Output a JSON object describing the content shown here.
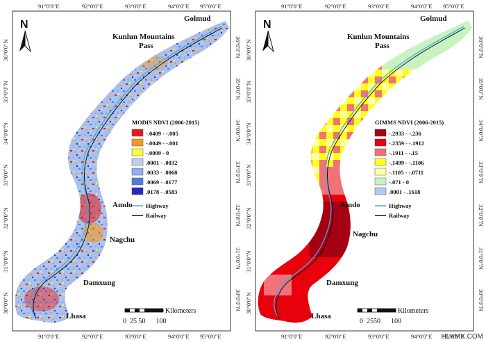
{
  "lon_labels": [
    "91°0'0\"E",
    "92°0'0\"E",
    "93°0'0\"E",
    "94°0'0\"E",
    "95°0'0\"E"
  ],
  "lat_labels": [
    "36°0'0\"N",
    "35°0'0\"N",
    "34°0'0\"N",
    "33°0'0\"N",
    "32°0'0\"N",
    "31°0'0\"N",
    "30°0'0\"N"
  ],
  "north_label": "N",
  "cities": [
    "Golmud",
    "Kunlun Mountains",
    "Pass",
    "Amdo",
    "Nagchu",
    "Damxung",
    "Lhasa"
  ],
  "scale": {
    "unit": "Kilometers",
    "left_ticks": "0  25 50      100",
    "right_ticks": "0  2550      100"
  },
  "maps": [
    {
      "legend_title": "MODIS NDVI (2006-2015)",
      "classes": [
        {
          "label": "-.0409 - -.005",
          "color": "#e31a1c"
        },
        {
          "label": "-.0049 - -.001",
          "color": "#f59a1d"
        },
        {
          "label": "-.0009 - 0",
          "color": "#ffff33"
        },
        {
          "label": ".0001 - .0032",
          "color": "#bfcfee"
        },
        {
          "label": ".0033 - .0068",
          "color": "#8fb0ea"
        },
        {
          "label": ".0069 - .0177",
          "color": "#4d7fe0"
        },
        {
          "label": ".0178 - .0583",
          "color": "#2b22c8"
        }
      ],
      "highway_label": "Highway",
      "railway_label": "Railway"
    },
    {
      "legend_title": "GIMMS NDVI (2006-2015)",
      "classes": [
        {
          "label": "-.2933 - -.236",
          "color": "#a50013"
        },
        {
          "label": "-.2359 - -.1912",
          "color": "#e8000d"
        },
        {
          "label": "-.1911 - -.15",
          "color": "#f0737a"
        },
        {
          "label": "-.1499 - -.1106",
          "color": "#ffff1a"
        },
        {
          "label": "-.1105 - -.0711",
          "color": "#ffffa8"
        },
        {
          "label": "-.071 - 0",
          "color": "#c8f2c0"
        },
        {
          "label": ".0001 - .1618",
          "color": "#b4c8f0"
        }
      ],
      "highway_label": "Highway",
      "railway_label": "Railway"
    }
  ],
  "colors": {
    "highway": "#4aa8e0",
    "railway": "#111111"
  },
  "watermark": "HLKMX.COM"
}
